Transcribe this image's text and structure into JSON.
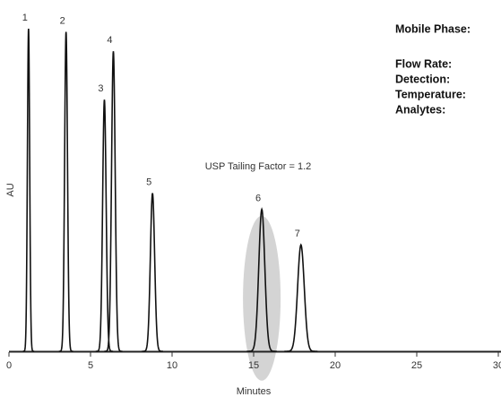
{
  "chart_data": {
    "type": "chromatogram",
    "x": [
      1.2,
      3.5,
      5.85,
      6.4,
      8.8,
      15.5,
      17.9
    ],
    "values": [
      1.0,
      0.99,
      0.78,
      0.93,
      0.49,
      0.44,
      0.33
    ],
    "peak_labels": [
      "1",
      "2",
      "3",
      "4",
      "5",
      "6",
      "7"
    ],
    "xlim": [
      0,
      30
    ],
    "xticks": [
      0,
      5,
      10,
      15,
      20,
      25,
      30
    ],
    "ylim": [
      0,
      1.0
    ],
    "xlabel": "Minutes",
    "ylabel": "AU",
    "annotation": "USP Tailing Factor = 1.2",
    "color": "#111111"
  },
  "sidebar": {
    "labels": [
      "Mobile Phase:",
      "Flow Rate:",
      "Detection:",
      "Temperature:",
      "Analytes:"
    ]
  }
}
